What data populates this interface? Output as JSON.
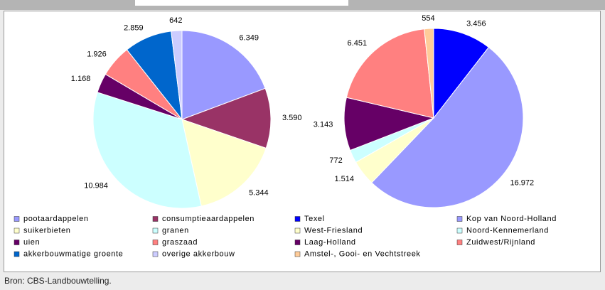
{
  "chart_data": [
    {
      "type": "pie",
      "categories": [
        "pootaardappelen",
        "consumptieaardappelen",
        "suikerbieten",
        "granen",
        "uien",
        "graszaad",
        "akkerbouwmatige groente",
        "overige akkerbouw"
      ],
      "values": [
        6349,
        3590,
        5344,
        10984,
        1168,
        1926,
        2859,
        642
      ],
      "value_labels": [
        "6.349",
        "3.590",
        "5.344",
        "10.984",
        "1.168",
        "1.926",
        "2.859",
        "642"
      ],
      "colors": [
        "#9999ff",
        "#993366",
        "#ffffcc",
        "#ccffff",
        "#660066",
        "#ff8080",
        "#0066cc",
        "#ccccff"
      ]
    },
    {
      "type": "pie",
      "categories": [
        "Texel",
        "Kop van Noord-Holland",
        "West-Friesland",
        "Noord-Kennemerland",
        "Laag-Holland",
        "Zuidwest/Rijnland",
        "Amstel-, Gooi- en Vechtstreek"
      ],
      "values": [
        3456,
        16972,
        1514,
        772,
        3143,
        6451,
        554
      ],
      "value_labels": [
        "3.456",
        "16.972",
        "1.514",
        "772",
        "3.143",
        "6.451",
        "554"
      ],
      "colors": [
        "#0000ff",
        "#9999ff",
        "#ffffcc",
        "#ccffff",
        "#660066",
        "#ff8080",
        "#ffcc99"
      ]
    }
  ],
  "source": "Bron: CBS-Landbouwtelling."
}
